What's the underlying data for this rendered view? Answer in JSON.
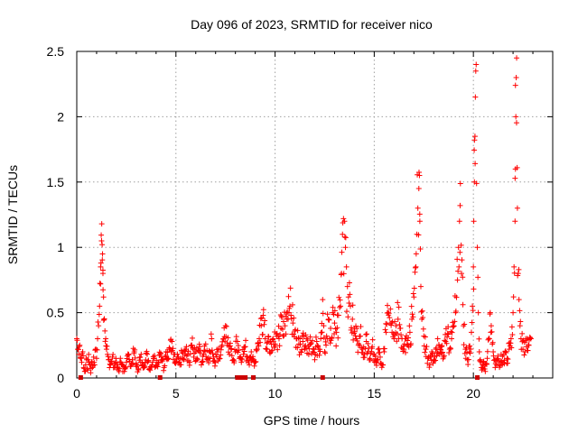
{
  "chart_data": {
    "type": "scatter",
    "title": "Day 096 of 2023, SRMTID for receiver nico",
    "xlabel": "GPS time / hours",
    "ylabel": "SRMTID / TECUs",
    "xlim": [
      0,
      24
    ],
    "ylim": [
      0,
      2.5
    ],
    "xticks": [
      0,
      5,
      10,
      15,
      20
    ],
    "xtick_labels": [
      "0",
      "5",
      "10",
      "15",
      "20"
    ],
    "yticks": [
      0,
      0.5,
      1,
      1.5,
      2,
      2.5
    ],
    "ytick_labels": [
      "0",
      "0.5",
      "1",
      "1.5",
      "2",
      "2.5"
    ],
    "grid": true,
    "series": [
      {
        "name": "SRMTID",
        "color": "#ff0000",
        "marker": "plus",
        "points": [
          [
            0.0,
            0.3
          ],
          [
            0.05,
            0.22
          ],
          [
            0.1,
            0.18
          ],
          [
            0.15,
            0.25
          ],
          [
            0.2,
            0.15
          ],
          [
            0.25,
            0.12
          ],
          [
            0.3,
            0.2
          ],
          [
            0.35,
            0.08
          ],
          [
            0.4,
            0.05
          ],
          [
            0.45,
            0.1
          ],
          [
            0.5,
            0.14
          ],
          [
            0.55,
            0.06
          ],
          [
            0.6,
            0.18
          ],
          [
            0.65,
            0.1
          ],
          [
            0.7,
            0.04
          ],
          [
            0.75,
            0.12
          ],
          [
            0.8,
            0.08
          ],
          [
            0.85,
            0.16
          ],
          [
            0.9,
            0.1
          ],
          [
            0.95,
            0.22
          ],
          [
            1.0,
            0.15
          ],
          [
            1.05,
            0.3
          ],
          [
            1.1,
            0.4
          ],
          [
            1.15,
            0.55
          ],
          [
            1.2,
            0.72
          ],
          [
            1.22,
            0.88
          ],
          [
            1.25,
            1.05
          ],
          [
            1.28,
            1.02
          ],
          [
            1.3,
            0.95
          ],
          [
            1.32,
            0.8
          ],
          [
            1.35,
            0.62
          ],
          [
            1.38,
            0.45
          ],
          [
            1.42,
            0.36
          ],
          [
            1.46,
            0.3
          ],
          [
            1.5,
            0.22
          ],
          [
            1.55,
            0.18
          ],
          [
            1.6,
            0.14
          ],
          [
            1.7,
            0.1
          ],
          [
            1.8,
            0.16
          ],
          [
            1.9,
            0.08
          ],
          [
            2.0,
            0.12
          ],
          [
            2.1,
            0.06
          ],
          [
            2.2,
            0.15
          ],
          [
            2.3,
            0.1
          ],
          [
            2.4,
            0.05
          ],
          [
            2.5,
            0.12
          ],
          [
            2.6,
            0.18
          ],
          [
            2.7,
            0.09
          ],
          [
            2.8,
            0.14
          ],
          [
            2.9,
            0.2
          ],
          [
            3.0,
            0.11
          ],
          [
            3.1,
            0.07
          ],
          [
            3.2,
            0.16
          ],
          [
            3.3,
            0.12
          ],
          [
            3.4,
            0.08
          ],
          [
            3.5,
            0.19
          ],
          [
            3.6,
            0.13
          ],
          [
            3.7,
            0.06
          ],
          [
            3.8,
            0.1
          ],
          [
            3.9,
            0.15
          ],
          [
            4.0,
            0.09
          ],
          [
            4.1,
            0.12
          ],
          [
            4.2,
            0.18
          ],
          [
            4.3,
            0.14
          ],
          [
            4.4,
            0.08
          ],
          [
            4.5,
            0.2
          ],
          [
            4.6,
            0.15
          ],
          [
            4.7,
            0.22
          ],
          [
            4.8,
            0.28
          ],
          [
            4.9,
            0.18
          ],
          [
            5.0,
            0.12
          ],
          [
            5.1,
            0.16
          ],
          [
            5.2,
            0.1
          ],
          [
            5.3,
            0.2
          ],
          [
            5.4,
            0.14
          ],
          [
            5.5,
            0.22
          ],
          [
            5.6,
            0.18
          ],
          [
            5.7,
            0.12
          ],
          [
            5.8,
            0.25
          ],
          [
            5.9,
            0.16
          ],
          [
            6.0,
            0.2
          ],
          [
            6.1,
            0.14
          ],
          [
            6.2,
            0.24
          ],
          [
            6.3,
            0.12
          ],
          [
            6.4,
            0.18
          ],
          [
            6.5,
            0.26
          ],
          [
            6.6,
            0.14
          ],
          [
            6.7,
            0.2
          ],
          [
            6.8,
            0.3
          ],
          [
            6.9,
            0.16
          ],
          [
            7.0,
            0.12
          ],
          [
            7.1,
            0.2
          ],
          [
            7.2,
            0.15
          ],
          [
            7.3,
            0.24
          ],
          [
            7.4,
            0.3
          ],
          [
            7.5,
            0.4
          ],
          [
            7.6,
            0.25
          ],
          [
            7.7,
            0.18
          ],
          [
            7.8,
            0.22
          ],
          [
            7.9,
            0.14
          ],
          [
            8.0,
            0.2
          ],
          [
            8.1,
            0.28
          ],
          [
            8.2,
            0.15
          ],
          [
            8.3,
            0.12
          ],
          [
            8.4,
            0.18
          ],
          [
            8.5,
            0.24
          ],
          [
            8.6,
            0.16
          ],
          [
            8.7,
            0.1
          ],
          [
            8.8,
            0.2
          ],
          [
            8.9,
            0.14
          ],
          [
            9.0,
            0.12
          ],
          [
            9.1,
            0.22
          ],
          [
            9.2,
            0.3
          ],
          [
            9.3,
            0.4
          ],
          [
            9.4,
            0.48
          ],
          [
            9.5,
            0.3
          ],
          [
            9.6,
            0.22
          ],
          [
            9.7,
            0.28
          ],
          [
            9.8,
            0.2
          ],
          [
            9.9,
            0.3
          ],
          [
            10.0,
            0.26
          ],
          [
            10.1,
            0.34
          ],
          [
            10.2,
            0.3
          ],
          [
            10.3,
            0.38
          ],
          [
            10.4,
            0.32
          ],
          [
            10.5,
            0.4
          ],
          [
            10.6,
            0.45
          ],
          [
            10.7,
            0.5
          ],
          [
            10.75,
            0.55
          ],
          [
            10.8,
            0.48
          ],
          [
            10.9,
            0.42
          ],
          [
            11.0,
            0.36
          ],
          [
            11.1,
            0.3
          ],
          [
            11.2,
            0.26
          ],
          [
            11.3,
            0.2
          ],
          [
            11.4,
            0.28
          ],
          [
            11.5,
            0.22
          ],
          [
            11.6,
            0.3
          ],
          [
            11.7,
            0.18
          ],
          [
            11.8,
            0.26
          ],
          [
            11.9,
            0.2
          ],
          [
            12.0,
            0.14
          ],
          [
            12.1,
            0.28
          ],
          [
            12.2,
            0.22
          ],
          [
            12.3,
            0.3
          ],
          [
            12.4,
            0.6
          ],
          [
            12.5,
            0.2
          ],
          [
            12.6,
            0.32
          ],
          [
            12.7,
            0.45
          ],
          [
            12.8,
            0.38
          ],
          [
            12.9,
            0.5
          ],
          [
            13.0,
            0.42
          ],
          [
            13.1,
            0.35
          ],
          [
            13.2,
            0.48
          ],
          [
            13.3,
            0.55
          ],
          [
            13.35,
            0.8
          ],
          [
            13.4,
            1.1
          ],
          [
            13.45,
            1.22
          ],
          [
            13.5,
            1.2
          ],
          [
            13.55,
            1.0
          ],
          [
            13.6,
            0.85
          ],
          [
            13.65,
            0.7
          ],
          [
            13.7,
            0.62
          ],
          [
            13.8,
            0.55
          ],
          [
            13.9,
            0.45
          ],
          [
            14.0,
            0.38
          ],
          [
            14.1,
            0.3
          ],
          [
            14.2,
            0.25
          ],
          [
            14.3,
            0.32
          ],
          [
            14.4,
            0.22
          ],
          [
            14.5,
            0.18
          ],
          [
            14.6,
            0.28
          ],
          [
            14.7,
            0.2
          ],
          [
            14.8,
            0.14
          ],
          [
            14.9,
            0.24
          ],
          [
            15.0,
            0.18
          ],
          [
            15.1,
            0.12
          ],
          [
            15.2,
            0.22
          ],
          [
            15.3,
            0.16
          ],
          [
            15.4,
            0.1
          ],
          [
            15.5,
            0.2
          ],
          [
            15.6,
            0.35
          ],
          [
            15.7,
            0.5
          ],
          [
            15.8,
            0.42
          ],
          [
            15.9,
            0.35
          ],
          [
            16.0,
            0.3
          ],
          [
            16.1,
            0.4
          ],
          [
            16.2,
            0.45
          ],
          [
            16.3,
            0.38
          ],
          [
            16.4,
            0.3
          ],
          [
            16.5,
            0.22
          ],
          [
            16.6,
            0.3
          ],
          [
            16.7,
            0.25
          ],
          [
            16.8,
            0.35
          ],
          [
            16.9,
            0.45
          ],
          [
            17.0,
            0.62
          ],
          [
            17.1,
            0.85
          ],
          [
            17.15,
            1.1
          ],
          [
            17.2,
            1.3
          ],
          [
            17.25,
            1.45
          ],
          [
            17.28,
            1.55
          ],
          [
            17.3,
            1.2
          ],
          [
            17.35,
            0.7
          ],
          [
            17.4,
            0.45
          ],
          [
            17.5,
            0.32
          ],
          [
            17.6,
            0.22
          ],
          [
            17.7,
            0.15
          ],
          [
            17.8,
            0.1
          ],
          [
            17.9,
            0.2
          ],
          [
            18.0,
            0.14
          ],
          [
            18.1,
            0.22
          ],
          [
            18.2,
            0.3
          ],
          [
            18.3,
            0.18
          ],
          [
            18.4,
            0.24
          ],
          [
            18.5,
            0.16
          ],
          [
            18.6,
            0.28
          ],
          [
            18.7,
            0.34
          ],
          [
            18.8,
            0.22
          ],
          [
            18.9,
            0.3
          ],
          [
            19.0,
            0.4
          ],
          [
            19.1,
            0.5
          ],
          [
            19.2,
            0.75
          ],
          [
            19.25,
            1.0
          ],
          [
            19.3,
            1.2
          ],
          [
            19.33,
            1.32
          ],
          [
            19.4,
            0.8
          ],
          [
            19.5,
            0.4
          ],
          [
            19.6,
            0.22
          ],
          [
            19.7,
            0.14
          ],
          [
            19.8,
            0.2
          ],
          [
            19.9,
            0.35
          ],
          [
            19.95,
            0.55
          ],
          [
            20.0,
            0.85
          ],
          [
            20.02,
            1.2
          ],
          [
            20.05,
            1.5
          ],
          [
            20.08,
            1.85
          ],
          [
            20.1,
            2.15
          ],
          [
            20.12,
            2.35
          ],
          [
            20.14,
            2.4
          ],
          [
            20.2,
            1.0
          ],
          [
            20.25,
            0.5
          ],
          [
            20.3,
            0.2
          ],
          [
            20.4,
            0.08
          ],
          [
            20.5,
            0.12
          ],
          [
            20.6,
            0.05
          ],
          [
            20.7,
            0.15
          ],
          [
            20.8,
            0.3
          ],
          [
            20.85,
            0.5
          ],
          [
            20.9,
            0.4
          ],
          [
            21.0,
            0.2
          ],
          [
            21.1,
            0.08
          ],
          [
            21.2,
            0.14
          ],
          [
            21.3,
            0.1
          ],
          [
            21.4,
            0.18
          ],
          [
            21.5,
            0.12
          ],
          [
            21.6,
            0.2
          ],
          [
            21.7,
            0.15
          ],
          [
            21.8,
            0.22
          ],
          [
            21.9,
            0.3
          ],
          [
            22.0,
            0.5
          ],
          [
            22.05,
            0.85
          ],
          [
            22.1,
            1.2
          ],
          [
            22.12,
            1.6
          ],
          [
            22.14,
            2.0
          ],
          [
            22.16,
            2.3
          ],
          [
            22.18,
            2.45
          ],
          [
            22.22,
            1.3
          ],
          [
            22.26,
            0.8
          ],
          [
            22.3,
            0.6
          ],
          [
            22.35,
            0.4
          ],
          [
            22.4,
            0.3
          ],
          [
            22.5,
            0.22
          ],
          [
            22.6,
            0.2
          ],
          [
            22.7,
            0.3
          ],
          [
            22.8,
            0.25
          ],
          [
            22.9,
            0.3
          ]
        ]
      }
    ],
    "low_markers": {
      "color": "#cc0000",
      "marker": "square",
      "x": [
        0.2,
        4.2,
        8.1,
        8.3,
        8.5,
        8.9,
        12.4,
        20.2
      ]
    }
  }
}
